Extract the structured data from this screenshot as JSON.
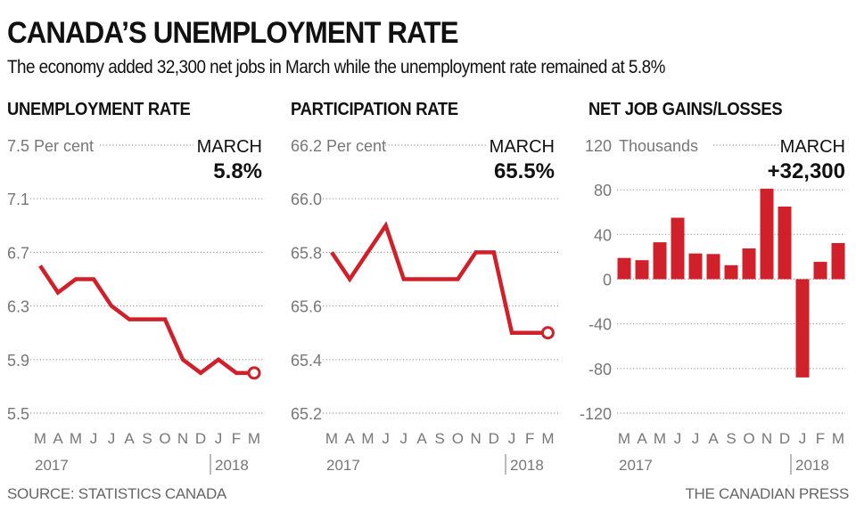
{
  "title": "CANADA’S UNEMPLOYMENT RATE",
  "subtitle": "The economy added 32,300 net jobs in March while the unemployment rate remained at 5.8%",
  "footer": {
    "source": "SOURCE: STATISTICS CANADA",
    "credit": "THE CANADIAN PRESS"
  },
  "colors": {
    "accent": "#d0202a",
    "gridline": "#999999",
    "axis_text": "#777777",
    "text": "#111111"
  },
  "chart_data": [
    {
      "type": "line",
      "title": "UNEMPLOYMENT RATE",
      "unit_label": "Per cent",
      "callout_label": "MARCH",
      "callout_value": "5.8%",
      "categories": [
        "M",
        "A",
        "M",
        "J",
        "J",
        "A",
        "S",
        "O",
        "N",
        "D",
        "J",
        "F",
        "M"
      ],
      "year_labels": [
        "2017",
        "2018"
      ],
      "values": [
        6.6,
        6.4,
        6.5,
        6.5,
        6.3,
        6.2,
        6.2,
        6.2,
        5.9,
        5.8,
        5.9,
        5.8,
        5.8
      ],
      "yticks": [
        7.5,
        7.1,
        6.7,
        6.3,
        5.9,
        5.5
      ],
      "ytick_labels": [
        "7.5",
        "7.1",
        "6.7",
        "6.3",
        "5.9",
        "5.5"
      ],
      "ylim": [
        5.5,
        7.5
      ],
      "grid": true,
      "end_marker": "hollow-circle"
    },
    {
      "type": "line",
      "title": "PARTICIPATION RATE",
      "unit_label": "Per cent",
      "callout_label": "MARCH",
      "callout_value": "65.5%",
      "categories": [
        "M",
        "A",
        "M",
        "J",
        "J",
        "A",
        "S",
        "O",
        "N",
        "D",
        "J",
        "F",
        "M"
      ],
      "year_labels": [
        "2017",
        "2018"
      ],
      "values": [
        65.8,
        65.7,
        65.8,
        65.9,
        65.7,
        65.7,
        65.7,
        65.7,
        65.8,
        65.8,
        65.5,
        65.5,
        65.5
      ],
      "yticks": [
        66.2,
        66.0,
        65.8,
        65.6,
        65.4,
        65.2
      ],
      "ytick_labels": [
        "66.2",
        "66.0",
        "65.8",
        "65.6",
        "65.4",
        "65.2"
      ],
      "ylim": [
        65.2,
        66.2
      ],
      "grid": true,
      "end_marker": "hollow-circle"
    },
    {
      "type": "bar",
      "title": "NET JOB GAINS/LOSSES",
      "unit_label": "Thousands",
      "callout_label": "MARCH",
      "callout_value": "+32,300",
      "categories": [
        "M",
        "A",
        "M",
        "J",
        "J",
        "A",
        "S",
        "O",
        "N",
        "D",
        "J",
        "F",
        "M"
      ],
      "year_labels": [
        "2017",
        "2018"
      ],
      "values": [
        19,
        17,
        33,
        55,
        23,
        22.5,
        12.5,
        27.5,
        81,
        65,
        -88,
        15.5,
        32.3
      ],
      "yticks": [
        120,
        80,
        40,
        0,
        -40,
        -80,
        -120
      ],
      "ytick_labels": [
        "120",
        "80",
        "40",
        "0",
        "-40",
        "-80",
        "-120"
      ],
      "ylim": [
        -120,
        120
      ],
      "grid": true
    }
  ]
}
